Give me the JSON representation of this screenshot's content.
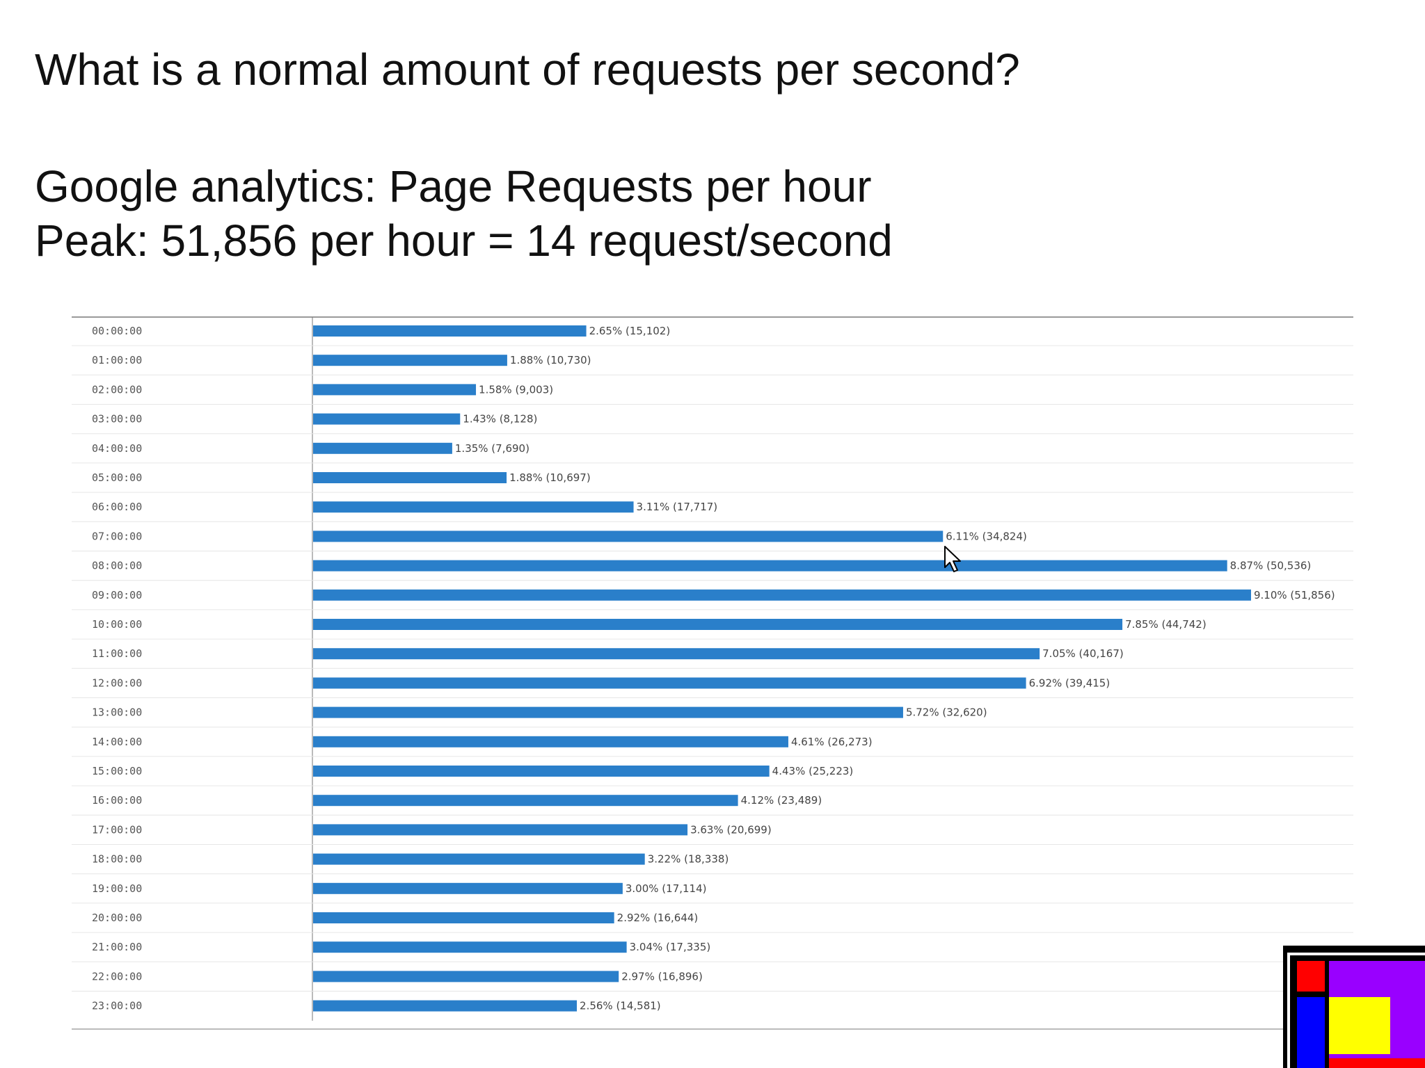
{
  "slide": {
    "question": "What is a normal amount of requests per second?",
    "subtitle": "Google analytics: Page Requests per hour",
    "peak": "Peak: 51,856 per hour = 14 request/second"
  },
  "chart_data": {
    "type": "bar",
    "orientation": "horizontal",
    "title": "Page Requests per hour",
    "categories": [
      "00:00:00",
      "01:00:00",
      "02:00:00",
      "03:00:00",
      "04:00:00",
      "05:00:00",
      "06:00:00",
      "07:00:00",
      "08:00:00",
      "09:00:00",
      "10:00:00",
      "11:00:00",
      "12:00:00",
      "13:00:00",
      "14:00:00",
      "15:00:00",
      "16:00:00",
      "17:00:00",
      "18:00:00",
      "19:00:00",
      "20:00:00",
      "21:00:00",
      "22:00:00",
      "23:00:00"
    ],
    "values": [
      15102,
      10730,
      9003,
      8128,
      7690,
      10697,
      17717,
      34824,
      50536,
      51856,
      44742,
      40167,
      39415,
      32620,
      26273,
      25223,
      23489,
      20699,
      18338,
      17114,
      16644,
      17335,
      16896,
      14581
    ],
    "percent_labels": [
      "2.65%",
      "1.88%",
      "1.58%",
      "1.43%",
      "1.35%",
      "1.88%",
      "3.11%",
      "6.11%",
      "8.87%",
      "9.10%",
      "7.85%",
      "7.05%",
      "6.92%",
      "5.72%",
      "4.61%",
      "4.43%",
      "4.12%",
      "3.63%",
      "3.22%",
      "3.00%",
      "2.92%",
      "3.04%",
      "2.97%",
      "2.56%"
    ],
    "value_labels": [
      "(15,102)",
      "(10,730)",
      "(9,003)",
      "(8,128)",
      "(7,690)",
      "(10,697)",
      "(17,717)",
      "(34,824)",
      "(50,536)",
      "(51,856)",
      "(44,742)",
      "(40,167)",
      "(39,415)",
      "(32,620)",
      "(26,273)",
      "(25,223)",
      "(23,489)",
      "(20,699)",
      "(18,338)",
      "(17,114)",
      "(16,644)",
      "(17,335)",
      "(16,896)",
      "(14,581)"
    ],
    "xlim": [
      0,
      51856
    ],
    "bar_color": "#2a7fca",
    "grid": true,
    "legend": "none"
  },
  "logo": {
    "colors": [
      "#000000",
      "#ff0000",
      "#9900ff",
      "#0000ff",
      "#ffff00"
    ]
  },
  "cursor": {
    "icon": "mouse-pointer-icon"
  }
}
